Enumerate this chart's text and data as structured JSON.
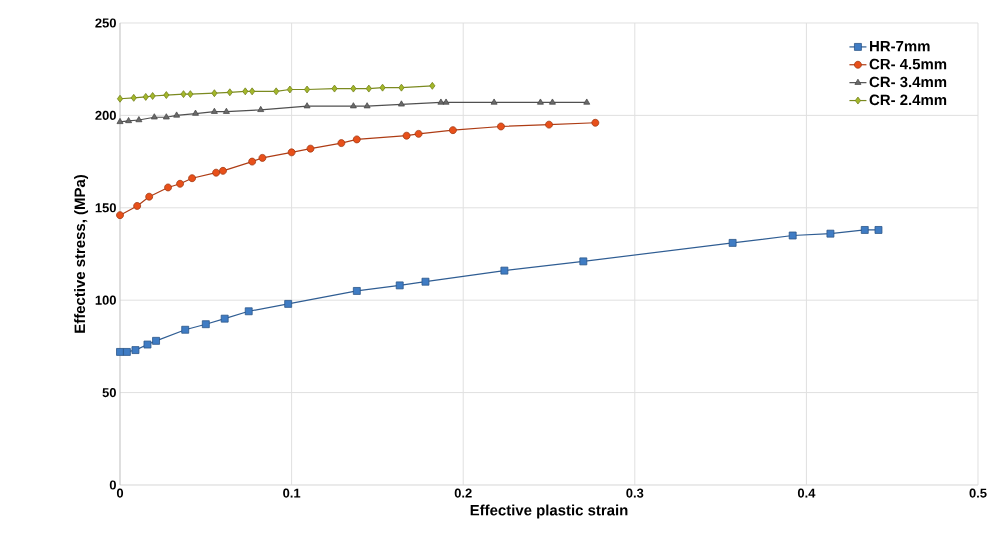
{
  "chart_data": {
    "type": "line",
    "xlabel": "Effective plastic strain",
    "ylabel": "Effective stress, (MPa)",
    "xlim": [
      0,
      0.5
    ],
    "xticks": [
      0,
      0.1,
      0.2,
      0.3,
      0.4,
      0.5
    ],
    "ylim": [
      0,
      250
    ],
    "yticks": [
      0,
      50,
      100,
      150,
      200,
      250
    ],
    "grid": true,
    "legend": "top right",
    "line_style": "solid",
    "series": [
      {
        "name": "HR-7mm",
        "color": "#3f7cc4",
        "marker": "square",
        "x": [
          0,
          0.004,
          0.009,
          0.016,
          0.021,
          0.038,
          0.05,
          0.061,
          0.075,
          0.098,
          0.138,
          0.163,
          0.178,
          0.224,
          0.27,
          0.357,
          0.392,
          0.414,
          0.434,
          0.442
        ],
        "values": [
          72,
          72,
          73,
          76,
          78,
          84,
          87,
          90,
          94,
          98,
          105,
          108,
          110,
          116,
          121,
          131,
          135,
          136,
          138,
          138
        ]
      },
      {
        "name": "CR- 4.5mm",
        "color": "#e8501a",
        "marker": "circle",
        "x": [
          0,
          0.01,
          0.017,
          0.028,
          0.035,
          0.042,
          0.056,
          0.06,
          0.077,
          0.083,
          0.1,
          0.111,
          0.129,
          0.138,
          0.167,
          0.174,
          0.194,
          0.222,
          0.25,
          0.277
        ],
        "values": [
          146,
          151,
          156,
          161,
          163,
          166,
          169,
          170,
          175,
          177,
          180,
          182,
          185,
          187,
          189,
          190,
          192,
          194,
          195,
          196
        ]
      },
      {
        "name": "CR- 3.4mm",
        "color": "#6a6a6a",
        "marker": "triangle",
        "x": [
          0,
          0.005,
          0.011,
          0.02,
          0.027,
          0.033,
          0.044,
          0.055,
          0.062,
          0.082,
          0.109,
          0.136,
          0.144,
          0.164,
          0.187,
          0.19,
          0.218,
          0.245,
          0.252,
          0.272
        ],
        "values": [
          196.5,
          197,
          197.5,
          199,
          199,
          200,
          201,
          202,
          202,
          203,
          205,
          205,
          205,
          206,
          207,
          207,
          207,
          207,
          207,
          207
        ]
      },
      {
        "name": "CR- 2.4mm",
        "color": "#a4b82a",
        "marker": "diamond",
        "x": [
          0,
          0.008,
          0.015,
          0.019,
          0.027,
          0.037,
          0.041,
          0.055,
          0.064,
          0.073,
          0.077,
          0.091,
          0.099,
          0.109,
          0.125,
          0.136,
          0.145,
          0.153,
          0.164,
          0.182
        ],
        "values": [
          209,
          209.5,
          210,
          210.5,
          211,
          211.5,
          211.5,
          212,
          212.5,
          213,
          213,
          213,
          214,
          214,
          214.5,
          214.5,
          214.5,
          215,
          215,
          216
        ]
      }
    ]
  }
}
